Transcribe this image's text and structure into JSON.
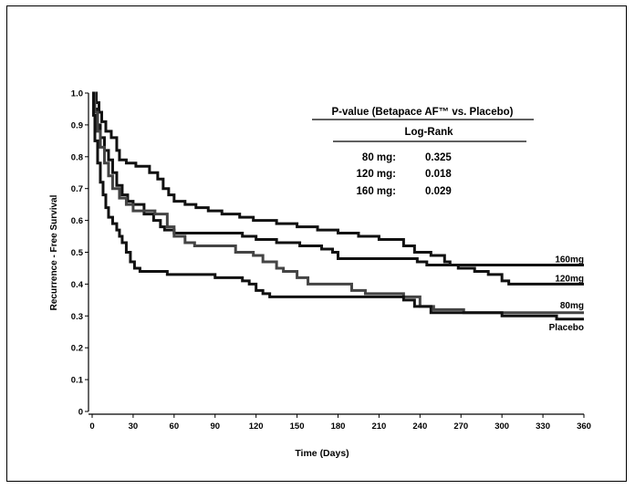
{
  "chart_data": {
    "type": "line",
    "title": "",
    "xlabel": "Time (Days)",
    "ylabel": "Recurrence - Free Survival",
    "xlim": [
      0,
      360
    ],
    "ylim": [
      0,
      1.0
    ],
    "x_ticks": [
      "0",
      "30",
      "60",
      "90",
      "120",
      "150",
      "180",
      "210",
      "240",
      "270",
      "300",
      "330",
      "360"
    ],
    "y_ticks": [
      "0",
      "0.1",
      "0.2",
      "0.3",
      "0.4",
      "0.5",
      "0.6",
      "0.7",
      "0.8",
      "0.9",
      "1.0"
    ],
    "grid": false,
    "series": [
      {
        "name": "160mg",
        "color": "#111111",
        "points": [
          [
            0,
            1.0
          ],
          [
            3,
            0.97
          ],
          [
            5,
            0.94
          ],
          [
            7,
            0.91
          ],
          [
            10,
            0.88
          ],
          [
            14,
            0.86
          ],
          [
            18,
            0.82
          ],
          [
            20,
            0.79
          ],
          [
            25,
            0.78
          ],
          [
            32,
            0.77
          ],
          [
            38,
            0.77
          ],
          [
            42,
            0.75
          ],
          [
            48,
            0.73
          ],
          [
            52,
            0.7
          ],
          [
            56,
            0.68
          ],
          [
            60,
            0.66
          ],
          [
            68,
            0.65
          ],
          [
            76,
            0.64
          ],
          [
            85,
            0.63
          ],
          [
            95,
            0.62
          ],
          [
            108,
            0.61
          ],
          [
            118,
            0.6
          ],
          [
            135,
            0.59
          ],
          [
            150,
            0.58
          ],
          [
            165,
            0.57
          ],
          [
            180,
            0.56
          ],
          [
            195,
            0.55
          ],
          [
            210,
            0.54
          ],
          [
            228,
            0.52
          ],
          [
            236,
            0.5
          ],
          [
            248,
            0.49
          ],
          [
            258,
            0.47
          ],
          [
            262,
            0.46
          ],
          [
            360,
            0.46
          ]
        ]
      },
      {
        "name": "120mg",
        "color": "#111111",
        "points": [
          [
            0,
            1.0
          ],
          [
            2,
            0.95
          ],
          [
            4,
            0.9
          ],
          [
            6,
            0.86
          ],
          [
            9,
            0.82
          ],
          [
            12,
            0.79
          ],
          [
            15,
            0.75
          ],
          [
            18,
            0.71
          ],
          [
            22,
            0.68
          ],
          [
            26,
            0.66
          ],
          [
            30,
            0.65
          ],
          [
            38,
            0.62
          ],
          [
            45,
            0.6
          ],
          [
            50,
            0.58
          ],
          [
            53,
            0.57
          ],
          [
            60,
            0.56
          ],
          [
            75,
            0.56
          ],
          [
            100,
            0.56
          ],
          [
            110,
            0.55
          ],
          [
            120,
            0.54
          ],
          [
            135,
            0.53
          ],
          [
            152,
            0.52
          ],
          [
            168,
            0.51
          ],
          [
            176,
            0.5
          ],
          [
            180,
            0.48
          ],
          [
            200,
            0.48
          ],
          [
            230,
            0.48
          ],
          [
            238,
            0.47
          ],
          [
            245,
            0.46
          ],
          [
            258,
            0.46
          ],
          [
            268,
            0.45
          ],
          [
            280,
            0.44
          ],
          [
            290,
            0.43
          ],
          [
            300,
            0.41
          ],
          [
            305,
            0.4
          ],
          [
            360,
            0.4
          ]
        ]
      },
      {
        "name": "80mg",
        "color": "#444444",
        "points": [
          [
            0,
            1.0
          ],
          [
            2,
            0.94
          ],
          [
            4,
            0.88
          ],
          [
            6,
            0.83
          ],
          [
            9,
            0.78
          ],
          [
            12,
            0.74
          ],
          [
            15,
            0.7
          ],
          [
            20,
            0.67
          ],
          [
            25,
            0.65
          ],
          [
            30,
            0.63
          ],
          [
            38,
            0.63
          ],
          [
            46,
            0.62
          ],
          [
            55,
            0.58
          ],
          [
            60,
            0.55
          ],
          [
            68,
            0.53
          ],
          [
            75,
            0.52
          ],
          [
            90,
            0.52
          ],
          [
            105,
            0.5
          ],
          [
            118,
            0.49
          ],
          [
            125,
            0.47
          ],
          [
            135,
            0.45
          ],
          [
            140,
            0.44
          ],
          [
            150,
            0.42
          ],
          [
            158,
            0.4
          ],
          [
            180,
            0.4
          ],
          [
            190,
            0.38
          ],
          [
            200,
            0.37
          ],
          [
            215,
            0.37
          ],
          [
            228,
            0.36
          ],
          [
            240,
            0.33
          ],
          [
            250,
            0.32
          ],
          [
            262,
            0.32
          ],
          [
            272,
            0.31
          ],
          [
            320,
            0.31
          ],
          [
            360,
            0.31
          ]
        ]
      },
      {
        "name": "Placebo",
        "color": "#111111",
        "points": [
          [
            0,
            1.0
          ],
          [
            1,
            0.93
          ],
          [
            2,
            0.85
          ],
          [
            4,
            0.78
          ],
          [
            6,
            0.72
          ],
          [
            8,
            0.68
          ],
          [
            10,
            0.64
          ],
          [
            12,
            0.61
          ],
          [
            15,
            0.59
          ],
          [
            18,
            0.57
          ],
          [
            20,
            0.55
          ],
          [
            22,
            0.53
          ],
          [
            25,
            0.5
          ],
          [
            28,
            0.47
          ],
          [
            31,
            0.45
          ],
          [
            35,
            0.44
          ],
          [
            45,
            0.44
          ],
          [
            55,
            0.43
          ],
          [
            65,
            0.43
          ],
          [
            80,
            0.43
          ],
          [
            90,
            0.42
          ],
          [
            110,
            0.41
          ],
          [
            115,
            0.4
          ],
          [
            120,
            0.38
          ],
          [
            125,
            0.37
          ],
          [
            130,
            0.36
          ],
          [
            160,
            0.36
          ],
          [
            190,
            0.36
          ],
          [
            210,
            0.36
          ],
          [
            228,
            0.35
          ],
          [
            236,
            0.33
          ],
          [
            248,
            0.31
          ],
          [
            260,
            0.31
          ],
          [
            280,
            0.31
          ],
          [
            300,
            0.3
          ],
          [
            330,
            0.3
          ],
          [
            340,
            0.29
          ],
          [
            360,
            0.29
          ]
        ]
      }
    ],
    "annotation": {
      "title": "P-value (Betapace AF™ vs. Placebo)",
      "column_header": "Log-Rank",
      "rows": [
        {
          "label": "80 mg:",
          "value": "0.325"
        },
        {
          "label": "120 mg:",
          "value": "0.018"
        },
        {
          "label": "160 mg:",
          "value": "0.029"
        }
      ]
    }
  }
}
